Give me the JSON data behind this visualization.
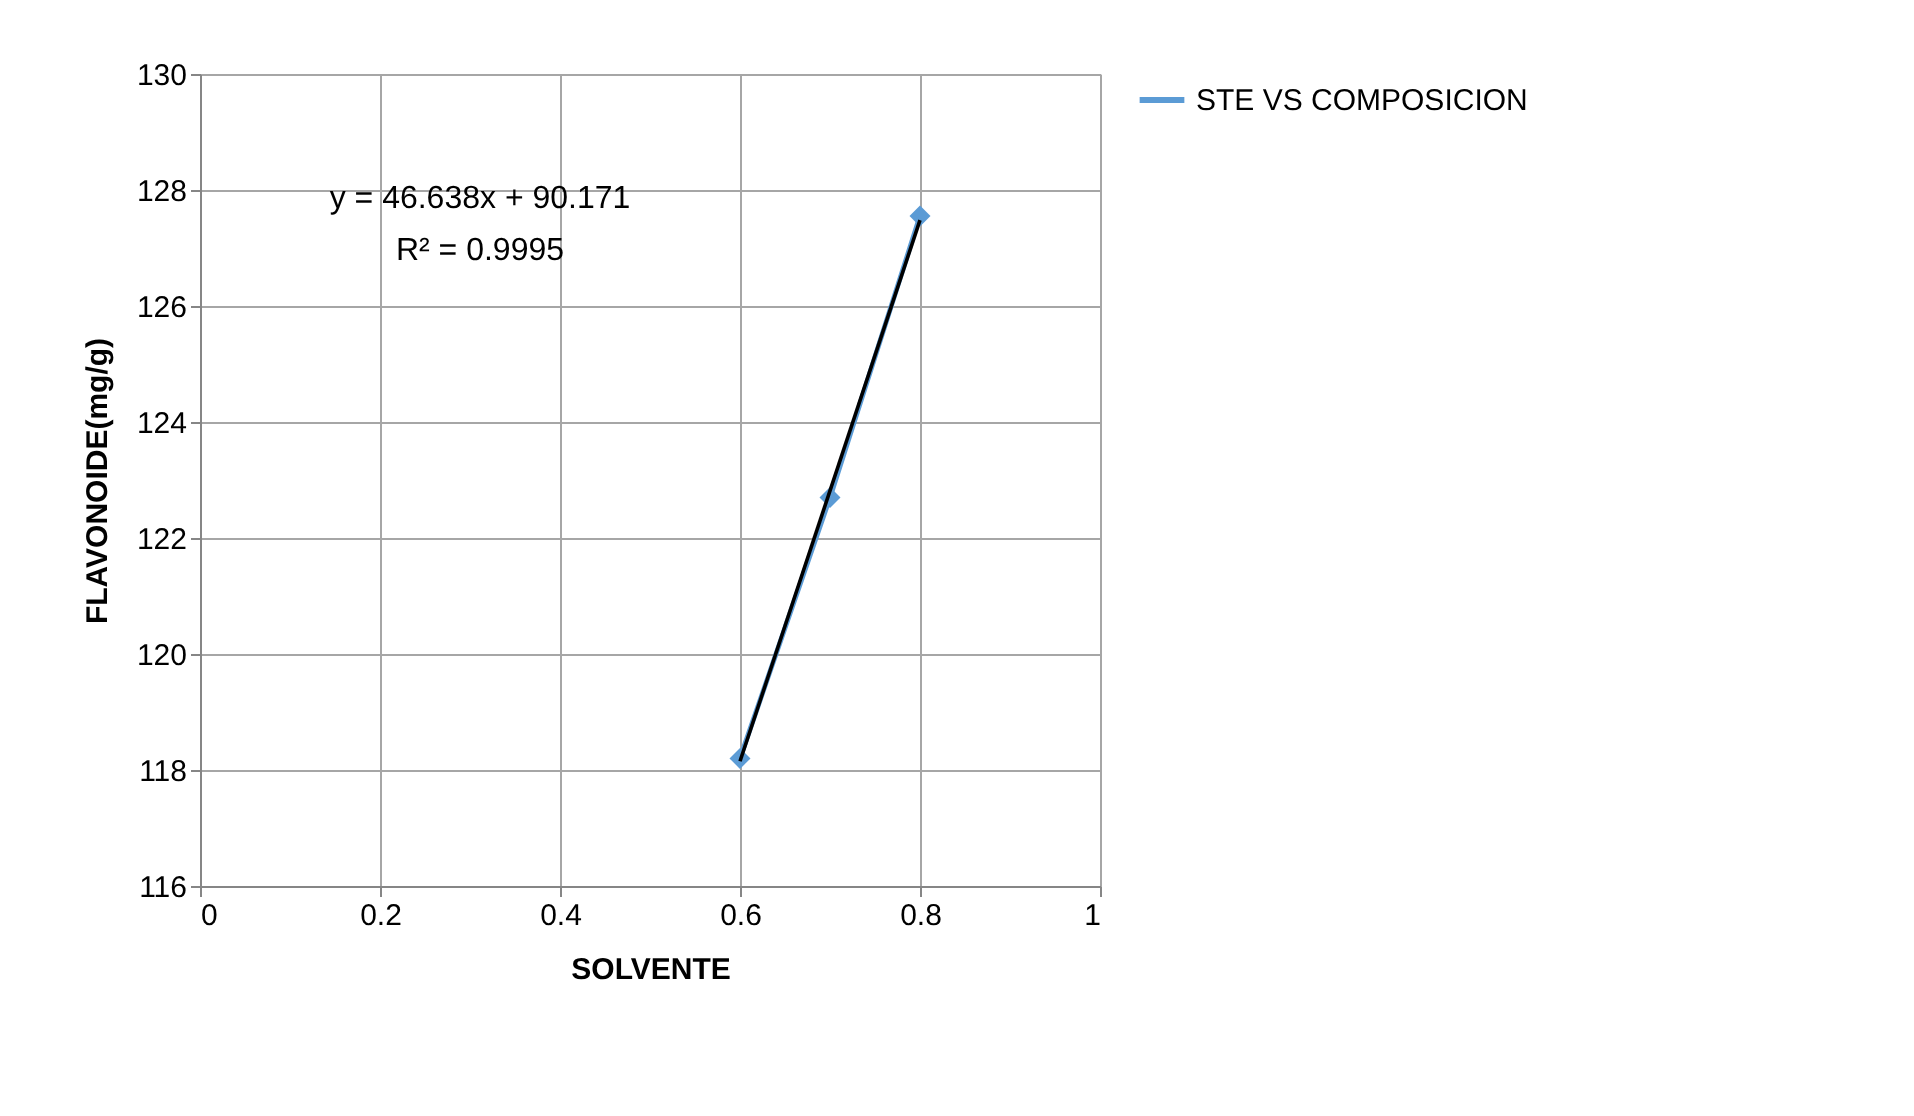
{
  "chart_data": {
    "type": "line",
    "xlabel": "SOLVENTE",
    "ylabel": "FLAVONOIDE(mg/g)",
    "xlim": [
      0,
      1
    ],
    "xticks": [
      0,
      0.2,
      0.4,
      0.6,
      0.8,
      1
    ],
    "ylim": [
      116,
      130
    ],
    "yticks": [
      116,
      118,
      120,
      122,
      124,
      126,
      128,
      130
    ],
    "grid": true,
    "legend": "right",
    "marker": "diamond",
    "line_style": "solid",
    "annotations": [
      "y = 46.638x + 90.171",
      "R² = 0.9995"
    ],
    "series": [
      {
        "name": "STE VS COMPOSICION",
        "color": "#5b9bd5",
        "x": [
          0.6,
          0.7,
          0.8
        ],
        "values": [
          118.2,
          122.7,
          127.55
        ]
      },
      {
        "type": "line",
        "color": "#000000",
        "marker": "none",
        "x": [
          0.6,
          0.8
        ],
        "values": [
          118.15,
          127.48
        ]
      }
    ]
  }
}
